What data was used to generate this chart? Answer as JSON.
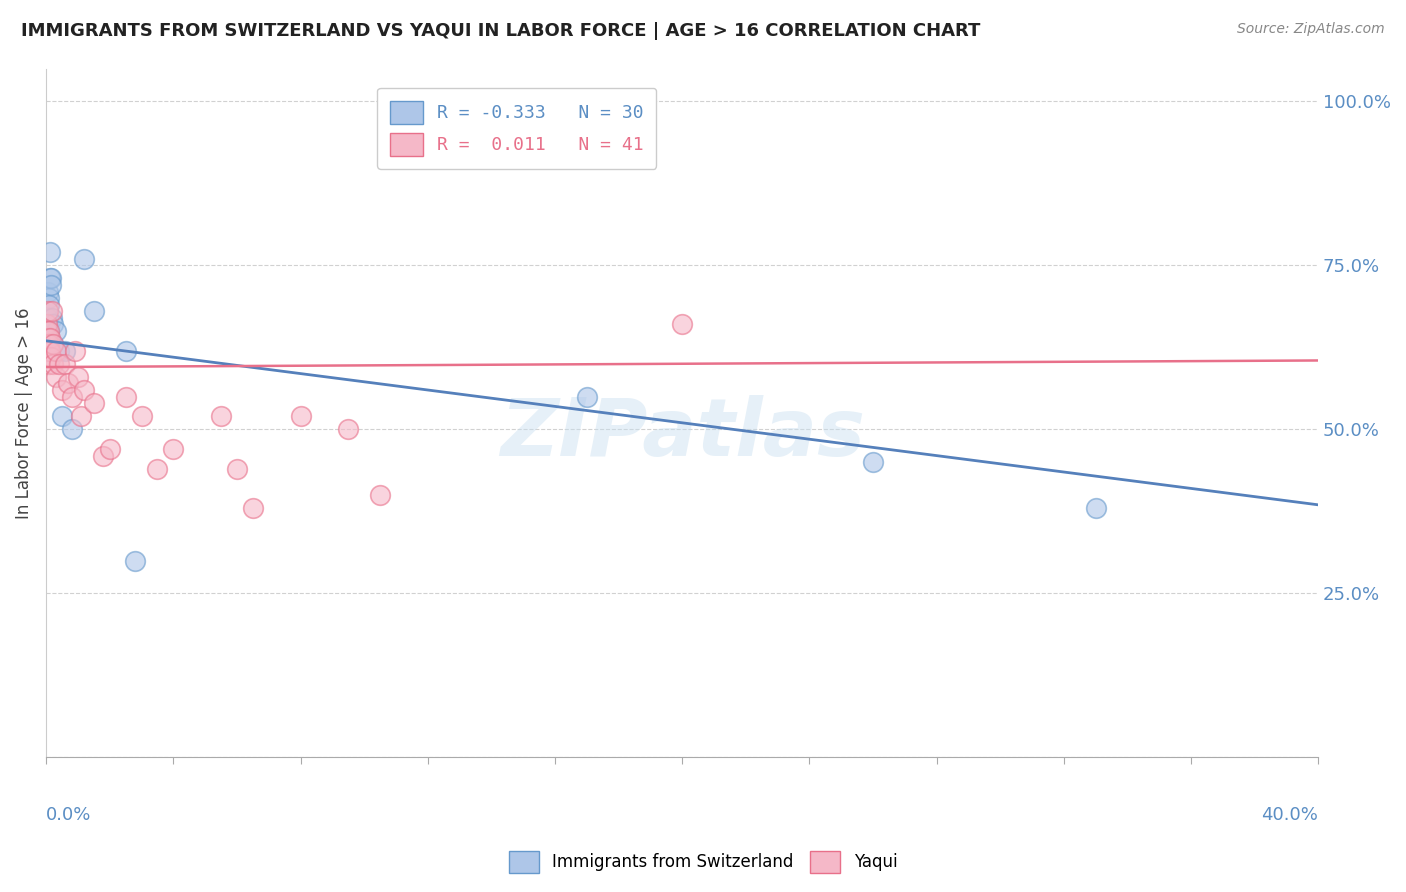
{
  "title": "IMMIGRANTS FROM SWITZERLAND VS YAQUI IN LABOR FORCE | AGE > 16 CORRELATION CHART",
  "source": "Source: ZipAtlas.com",
  "ylabel": "In Labor Force | Age > 16",
  "y_ticks": [
    0.0,
    0.25,
    0.5,
    0.75,
    1.0
  ],
  "y_tick_labels": [
    "",
    "25.0%",
    "50.0%",
    "75.0%",
    "100.0%"
  ],
  "xlim": [
    0.0,
    0.4
  ],
  "ylim": [
    0.0,
    1.05
  ],
  "swiss_R": -0.333,
  "swiss_N": 30,
  "yaqui_R": 0.011,
  "yaqui_N": 41,
  "swiss_color": "#aec6e8",
  "yaqui_color": "#f5b8c8",
  "swiss_edge_color": "#6699cc",
  "yaqui_edge_color": "#e8708a",
  "swiss_line_color": "#5580bb",
  "yaqui_line_color": "#e8708a",
  "watermark": "ZIPatlas",
  "swiss_line_y0": 0.635,
  "swiss_line_y1": 0.385,
  "yaqui_line_y0": 0.595,
  "yaqui_line_y1": 0.605,
  "swiss_x": [
    0.0002,
    0.0003,
    0.0004,
    0.0005,
    0.0005,
    0.0006,
    0.0007,
    0.0008,
    0.0009,
    0.001,
    0.001,
    0.0012,
    0.0013,
    0.0015,
    0.0015,
    0.0017,
    0.002,
    0.002,
    0.003,
    0.004,
    0.005,
    0.006,
    0.008,
    0.012,
    0.015,
    0.025,
    0.028,
    0.17,
    0.26,
    0.33
  ],
  "swiss_y": [
    0.66,
    0.63,
    0.65,
    0.67,
    0.65,
    0.64,
    0.71,
    0.7,
    0.69,
    0.65,
    0.62,
    0.77,
    0.73,
    0.73,
    0.72,
    0.67,
    0.63,
    0.66,
    0.65,
    0.62,
    0.52,
    0.62,
    0.5,
    0.76,
    0.68,
    0.62,
    0.3,
    0.55,
    0.45,
    0.38
  ],
  "yaqui_x": [
    0.0002,
    0.0003,
    0.0004,
    0.0005,
    0.0006,
    0.0007,
    0.0008,
    0.0009,
    0.001,
    0.001,
    0.0012,
    0.0013,
    0.0015,
    0.0017,
    0.002,
    0.002,
    0.003,
    0.003,
    0.004,
    0.005,
    0.006,
    0.007,
    0.008,
    0.009,
    0.01,
    0.011,
    0.012,
    0.015,
    0.018,
    0.02,
    0.025,
    0.03,
    0.035,
    0.04,
    0.055,
    0.06,
    0.065,
    0.08,
    0.095,
    0.105,
    0.2
  ],
  "yaqui_y": [
    0.65,
    0.63,
    0.66,
    0.62,
    0.68,
    0.64,
    0.62,
    0.6,
    0.65,
    0.63,
    0.64,
    0.62,
    0.61,
    0.68,
    0.6,
    0.63,
    0.62,
    0.58,
    0.6,
    0.56,
    0.6,
    0.57,
    0.55,
    0.62,
    0.58,
    0.52,
    0.56,
    0.54,
    0.46,
    0.47,
    0.55,
    0.52,
    0.44,
    0.47,
    0.52,
    0.44,
    0.38,
    0.52,
    0.5,
    0.4,
    0.66
  ]
}
